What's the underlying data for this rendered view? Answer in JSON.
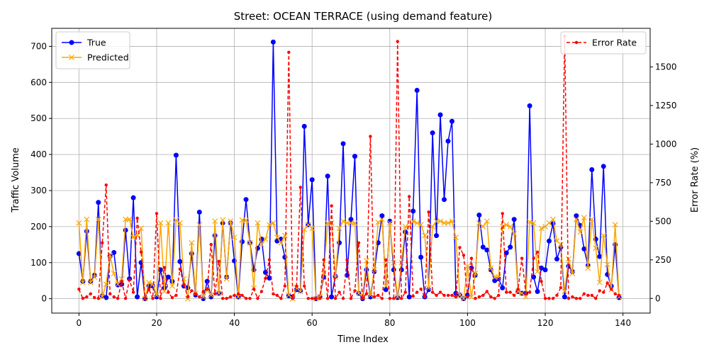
{
  "chart_data": {
    "type": "line",
    "title": "Street: OCEAN TERRACE (using demand feature)",
    "xlabel": "Time Index",
    "ylabel": "Traffic Volume",
    "y2label": "Error Rate (%)",
    "xlim": [
      -7,
      147
    ],
    "ylim": [
      -40,
      750
    ],
    "y2lim": [
      -95,
      1750
    ],
    "xticks": [
      0,
      20,
      40,
      60,
      80,
      100,
      120,
      140
    ],
    "yticks": [
      0,
      100,
      200,
      300,
      400,
      500,
      600,
      700
    ],
    "y2ticks": [
      0,
      250,
      500,
      750,
      1000,
      1250,
      1500
    ],
    "grid": true,
    "legend_left": "upper-left",
    "legend_right": "upper-right",
    "series": [
      {
        "name": "True",
        "axis": "left",
        "color": "#0000ff",
        "marker": "circle",
        "values": [
          125,
          48,
          187,
          48,
          65,
          267,
          8,
          3,
          118,
          128,
          38,
          40,
          190,
          55,
          280,
          5,
          100,
          0,
          35,
          35,
          5,
          80,
          30,
          60,
          48,
          398,
          103,
          35,
          30,
          125,
          10,
          240,
          0,
          48,
          5,
          175,
          15,
          210,
          60,
          210,
          105,
          5,
          158,
          275,
          155,
          80,
          140,
          165,
          73,
          57,
          712,
          160,
          165,
          115,
          8,
          5,
          25,
          22,
          478,
          205,
          330,
          0,
          5,
          60,
          340,
          5,
          62,
          155,
          430,
          65,
          220,
          395,
          15,
          0,
          80,
          5,
          75,
          155,
          230,
          25,
          215,
          80,
          3,
          80,
          185,
          5,
          243,
          578,
          115,
          5,
          25,
          460,
          175,
          510,
          275,
          437,
          492,
          15,
          10,
          0,
          10,
          85,
          65,
          232,
          143,
          135,
          80,
          50,
          55,
          30,
          127,
          143,
          220,
          20,
          15,
          15,
          535,
          60,
          20,
          85,
          80,
          160,
          208,
          110,
          143,
          5,
          90,
          75,
          230,
          203,
          138,
          92,
          358,
          165,
          117,
          367,
          67,
          35,
          150,
          3
        ],
        "predicted": false
      },
      {
        "name": "Predicted",
        "axis": "left",
        "color": "#ffa500",
        "marker": "x",
        "values": [
          210,
          45,
          220,
          45,
          60,
          220,
          5,
          40,
          120,
          70,
          40,
          55,
          220,
          220,
          170,
          175,
          195,
          0,
          45,
          40,
          10,
          210,
          20,
          210,
          35,
          218,
          210,
          55,
          0,
          155,
          15,
          205,
          5,
          25,
          10,
          215,
          15,
          218,
          55,
          215,
          170,
          5,
          218,
          218,
          155,
          30,
          210,
          150,
          165,
          205,
          210,
          170,
          155,
          175,
          10,
          0,
          30,
          20,
          192,
          205,
          195,
          0,
          5,
          70,
          210,
          210,
          60,
          195,
          215,
          210,
          210,
          210,
          15,
          5,
          105,
          10,
          80,
          212,
          220,
          35,
          210,
          100,
          5,
          100,
          200,
          200,
          215,
          210,
          205,
          175,
          30,
          200,
          215,
          215,
          210,
          210,
          215,
          170,
          10,
          0,
          90,
          5,
          70,
          210,
          200,
          215,
          85,
          60,
          60,
          200,
          205,
          200,
          180,
          20,
          15,
          5,
          213,
          210,
          75,
          195,
          200,
          210,
          220,
          160,
          150,
          20,
          110,
          70,
          220,
          185,
          225,
          85,
          220,
          140,
          45,
          175,
          95,
          25,
          205,
          5
        ],
        "predicted": true
      },
      {
        "name": "Error Rate",
        "axis": "right",
        "color": "#ff0000",
        "marker": "dot",
        "values": [
          60,
          0,
          10,
          30,
          5,
          0,
          360,
          735,
          30,
          10,
          0,
          110,
          0,
          120,
          40,
          520,
          300,
          0,
          60,
          0,
          550,
          0,
          200,
          40,
          5,
          20,
          190,
          90,
          10,
          50,
          30,
          10,
          45,
          60,
          350,
          30,
          240,
          0,
          0,
          10,
          20,
          30,
          20,
          0,
          0,
          60,
          0,
          45,
          130,
          250,
          30,
          20,
          0,
          80,
          1595,
          0,
          80,
          720,
          80,
          0,
          0,
          0,
          0,
          250,
          0,
          600,
          0,
          40,
          0,
          250,
          0,
          50,
          360,
          0,
          30,
          1050,
          10,
          20,
          0,
          250,
          0,
          0,
          1665,
          0,
          40,
          660,
          15,
          40,
          60,
          10,
          560,
          40,
          20,
          40,
          20,
          20,
          20,
          10,
          330,
          280,
          10,
          260,
          0,
          10,
          20,
          45,
          10,
          0,
          20,
          550,
          40,
          40,
          20,
          60,
          260,
          30,
          40,
          260,
          300,
          110,
          0,
          0,
          0,
          20,
          70,
          1700,
          0,
          10,
          0,
          0,
          30,
          20,
          20,
          0,
          50,
          40,
          100,
          60,
          30,
          20
        ]
      }
    ]
  }
}
